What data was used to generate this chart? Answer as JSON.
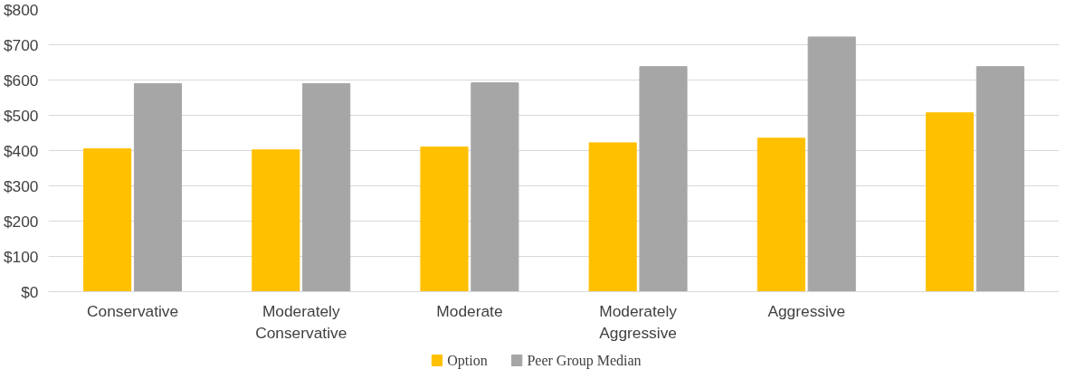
{
  "chart_data": {
    "type": "bar",
    "categories": [
      "Conservative",
      "Moderately Conservative",
      "Moderate",
      "Moderately Aggressive",
      "Aggressive",
      null
    ],
    "series": [
      {
        "name": "Option",
        "color": "#ffc000",
        "values": [
          405,
          402,
          410,
          422,
          435,
          507
        ]
      },
      {
        "name": "Peer Group Median",
        "color": "#a6a6a6",
        "values": [
          590,
          590,
          592,
          638,
          722,
          638
        ]
      }
    ],
    "ylim": [
      0,
      800
    ],
    "yticks": [
      {
        "value": 0,
        "label": "$0"
      },
      {
        "value": 100,
        "label": "$100"
      },
      {
        "value": 200,
        "label": "$200"
      },
      {
        "value": 300,
        "label": "$300"
      },
      {
        "value": 400,
        "label": "$400"
      },
      {
        "value": 500,
        "label": "$500"
      },
      {
        "value": 600,
        "label": "$600"
      },
      {
        "value": 700,
        "label": "$700"
      },
      {
        "value": 800,
        "label": "$800"
      }
    ],
    "grid": "y",
    "legend": "bottom"
  }
}
